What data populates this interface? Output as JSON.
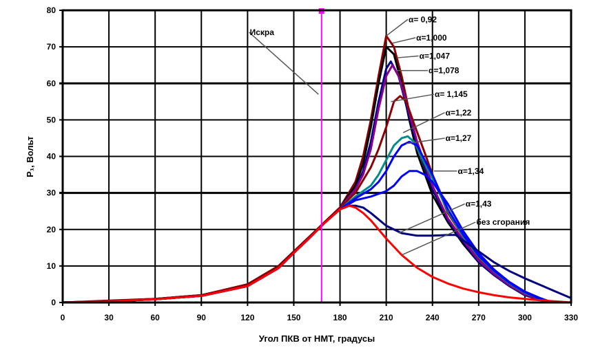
{
  "chart_data": {
    "type": "line",
    "title": "",
    "xlabel": "Угол ПКВ от НМТ, градусы",
    "ylabel": "P₁, Вольт",
    "xlim": [
      0,
      330
    ],
    "ylim": [
      0,
      80
    ],
    "grid": true,
    "xticks": [
      0,
      30,
      60,
      90,
      120,
      150,
      180,
      210,
      240,
      270,
      300,
      330
    ],
    "xtick_labels": [
      "0",
      "30",
      "60",
      "90",
      "120",
      "150",
      "180",
      "210",
      "240",
      "270",
      "300",
      "330"
    ],
    "yticks": [
      0,
      10,
      20,
      30,
      40,
      50,
      60,
      70,
      80
    ],
    "ytick_labels": [
      "0",
      "10",
      "20",
      "30",
      "40",
      "50",
      "60",
      "70",
      "80"
    ],
    "spark": {
      "label": "Искра",
      "x": 168,
      "color": "#ff00ff"
    },
    "series": [
      {
        "name": "α= 0,92",
        "color": "#8b0000",
        "x": [
          0,
          30,
          60,
          90,
          120,
          140,
          150,
          160,
          170,
          180,
          190,
          195,
          200,
          205,
          210,
          215,
          220,
          225,
          230,
          240,
          250,
          260,
          270,
          280,
          290,
          300,
          310,
          318
        ],
        "y": [
          0,
          0.5,
          1,
          2,
          5,
          10,
          14,
          18,
          22,
          26,
          33,
          40,
          50,
          62,
          73,
          70,
          62,
          52,
          43,
          31,
          23,
          17,
          12,
          8,
          5,
          2.5,
          1,
          0
        ]
      },
      {
        "name": "α=1,000",
        "color": "#000000",
        "x": [
          0,
          30,
          60,
          90,
          120,
          140,
          150,
          160,
          170,
          180,
          190,
          195,
          200,
          205,
          210,
          215,
          220,
          225,
          230,
          240,
          250,
          260,
          270,
          280,
          290,
          300,
          310,
          318
        ],
        "y": [
          0,
          0.4,
          1,
          2,
          4.8,
          9.6,
          13.8,
          17.8,
          22,
          26,
          32,
          38,
          48,
          60,
          70,
          68,
          60,
          50,
          41,
          29.5,
          22,
          16,
          11,
          7.5,
          4.5,
          2,
          0.8,
          0
        ]
      },
      {
        "name": "α=1,047",
        "color": "#00008b",
        "x": [
          0,
          30,
          60,
          90,
          120,
          140,
          150,
          160,
          170,
          180,
          190,
          195,
          200,
          205,
          210,
          213,
          218,
          223,
          230,
          240,
          250,
          260,
          270,
          280,
          290,
          300,
          310,
          318
        ],
        "y": [
          0,
          0.3,
          0.9,
          1.8,
          4.5,
          9.4,
          13.6,
          17.6,
          21.8,
          26,
          31,
          36,
          44,
          55,
          64,
          66,
          62,
          54,
          43,
          31,
          22.5,
          16.5,
          11,
          7.5,
          4.5,
          2,
          0.7,
          0
        ]
      },
      {
        "name": "α=1,078",
        "color": "#8b008b",
        "x": [
          0,
          30,
          60,
          90,
          120,
          140,
          150,
          160,
          170,
          180,
          190,
          195,
          200,
          205,
          210,
          214,
          218,
          223,
          230,
          240,
          250,
          260,
          270,
          280,
          290,
          300,
          310,
          318
        ],
        "y": [
          0,
          0.3,
          0.9,
          1.8,
          4.5,
          9.4,
          13.6,
          17.6,
          21.8,
          26,
          31,
          35,
          42,
          53,
          62,
          65,
          62,
          55,
          44,
          32,
          23,
          17,
          11.5,
          7.8,
          4.7,
          2.2,
          0.8,
          0
        ]
      },
      {
        "name": "α= 1,145",
        "color": "#8b0000",
        "x": [
          0,
          30,
          60,
          90,
          120,
          140,
          150,
          160,
          170,
          180,
          190,
          200,
          205,
          210,
          215,
          219,
          223,
          228,
          235,
          240,
          250,
          260,
          270,
          280,
          290,
          300,
          310,
          318
        ],
        "y": [
          0,
          0.4,
          1,
          2,
          4.8,
          9.6,
          13.8,
          17.8,
          22,
          26,
          30,
          37,
          42,
          48,
          55,
          56.5,
          55,
          49,
          41,
          35,
          24.5,
          18,
          12.5,
          8.5,
          5.2,
          2.5,
          0.9,
          0
        ]
      },
      {
        "name": "α=1,22",
        "color": "#008b8b",
        "x": [
          0,
          30,
          60,
          90,
          120,
          140,
          150,
          160,
          170,
          180,
          190,
          200,
          205,
          210,
          215,
          220,
          224,
          228,
          235,
          240,
          250,
          260,
          270,
          280,
          290,
          300,
          310,
          318
        ],
        "y": [
          0,
          0.3,
          0.9,
          1.8,
          4.5,
          9.4,
          13.6,
          17.6,
          21.8,
          25.5,
          29,
          32,
          35,
          39,
          43,
          45,
          45.5,
          44,
          38,
          34,
          25,
          18,
          12.5,
          8.5,
          5.2,
          2.6,
          1,
          0
        ]
      },
      {
        "name": "α=1,27",
        "color": "#0000ff",
        "x": [
          0,
          30,
          60,
          90,
          120,
          140,
          150,
          160,
          170,
          180,
          190,
          200,
          205,
          210,
          215,
          220,
          225,
          230,
          235,
          240,
          250,
          260,
          270,
          280,
          290,
          300,
          310,
          318
        ],
        "y": [
          0,
          0.3,
          0.9,
          1.8,
          4.5,
          9.4,
          13.6,
          17.6,
          21.8,
          25.5,
          28.5,
          31,
          33,
          36,
          40,
          43,
          44,
          43,
          39,
          35,
          25.5,
          18.5,
          12.8,
          8.7,
          5.4,
          2.8,
          1,
          0
        ]
      },
      {
        "name": "α=1,34",
        "color": "#0000ff",
        "x": [
          0,
          30,
          60,
          90,
          120,
          140,
          150,
          160,
          170,
          180,
          190,
          200,
          210,
          215,
          220,
          225,
          230,
          235,
          240,
          250,
          260,
          270,
          280,
          290,
          300,
          310,
          318
        ],
        "y": [
          0,
          0.3,
          0.9,
          1.8,
          4.5,
          9.4,
          13.6,
          17.6,
          21.8,
          25.5,
          28,
          29,
          30.5,
          32,
          34.5,
          36,
          36,
          35,
          33,
          27,
          19.5,
          13.5,
          9,
          5.6,
          3,
          1.2,
          0
        ]
      },
      {
        "name": "α=1,43",
        "color": "#000080",
        "x": [
          0,
          30,
          60,
          90,
          120,
          140,
          150,
          160,
          170,
          180,
          186,
          190,
          195,
          200,
          210,
          220,
          230,
          240,
          250,
          255,
          260,
          270,
          280,
          290,
          300,
          310,
          320,
          330
        ],
        "y": [
          0,
          0.3,
          0.9,
          1.8,
          4.5,
          9.4,
          13.6,
          17.6,
          21.8,
          25.5,
          26.5,
          26.5,
          26,
          24.5,
          21,
          19,
          18.3,
          18.3,
          18.5,
          18.5,
          17,
          14,
          11,
          8.6,
          6.6,
          4.8,
          3,
          1.2
        ]
      },
      {
        "name": "без сгорания",
        "color": "#ff0000",
        "x": [
          0,
          30,
          60,
          90,
          120,
          140,
          150,
          160,
          170,
          180,
          186,
          190,
          195,
          200,
          205,
          210,
          220,
          230,
          240,
          250,
          260,
          270,
          280,
          290,
          300,
          310,
          320,
          330
        ],
        "y": [
          0,
          0.3,
          0.9,
          1.8,
          4.5,
          9.4,
          13.6,
          17.6,
          21.8,
          25.5,
          26.5,
          26,
          24.5,
          22.5,
          20,
          17.5,
          13,
          9.5,
          7,
          5.2,
          3.8,
          2.8,
          2,
          1.4,
          1,
          0.6,
          0.3,
          0
        ]
      }
    ],
    "annotations": [
      {
        "text": "α= 0,92",
        "point": [
          210,
          73
        ],
        "text_at": [
          224,
          77.5
        ]
      },
      {
        "text": "α=1,000",
        "point": [
          214,
          71
        ],
        "text_at": [
          229,
          72.5
        ]
      },
      {
        "text": "α=1,047",
        "point": [
          217,
          67
        ],
        "text_at": [
          231,
          67.5
        ]
      },
      {
        "text": "α=1,078",
        "point": [
          217,
          63.5
        ],
        "text_at": [
          237,
          63.5
        ]
      },
      {
        "text": "α= 1,145",
        "point": [
          213,
          55
        ],
        "text_at": [
          241,
          57
        ]
      },
      {
        "text": "α=1,22",
        "point": [
          221,
          46.5
        ],
        "text_at": [
          248,
          52
        ]
      },
      {
        "text": "α=1,27",
        "point": [
          223,
          43.5
        ],
        "text_at": [
          248,
          45
        ]
      },
      {
        "text": "α=1,34",
        "point": [
          241,
          36
        ],
        "text_at": [
          256,
          36
        ]
      },
      {
        "text": "α=1,43",
        "point": [
          218,
          19
        ],
        "text_at": [
          261,
          27
        ]
      },
      {
        "text": "без сгорания",
        "point": [
          220,
          13
        ],
        "text_at": [
          268,
          22
        ]
      },
      {
        "text": "Искра",
        "point": [
          166,
          57
        ],
        "text_at": [
          121,
          74
        ]
      }
    ]
  }
}
